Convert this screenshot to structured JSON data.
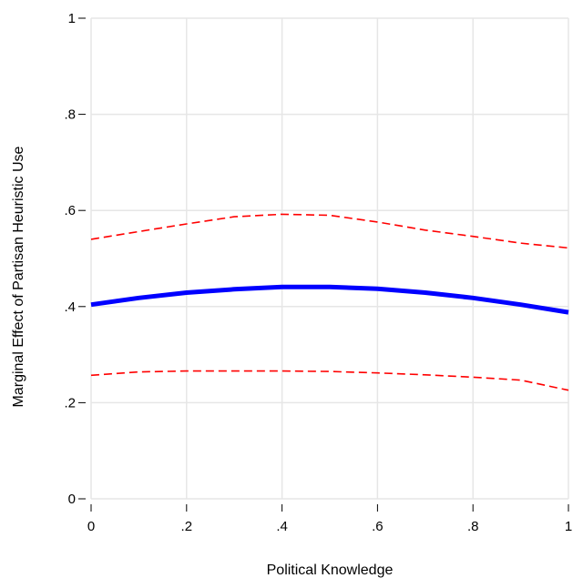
{
  "chart_data": {
    "type": "line",
    "title": "",
    "xlabel": "Political Knowledge",
    "ylabel": "Marginal Effect of Partisan Heuristic Use",
    "xlim": [
      0,
      1
    ],
    "ylim": [
      0,
      1
    ],
    "x_ticks": [
      0,
      0.2,
      0.4,
      0.6,
      0.8,
      1
    ],
    "x_tick_labels": [
      "0",
      ".2",
      ".4",
      ".6",
      ".8",
      "1"
    ],
    "y_ticks": [
      0,
      0.2,
      0.4,
      0.6,
      0.8,
      1
    ],
    "y_tick_labels": [
      "0",
      ".2",
      ".4",
      ".6",
      ".8",
      "1"
    ],
    "grid": true,
    "x": [
      0,
      0.1,
      0.2,
      0.3,
      0.4,
      0.5,
      0.6,
      0.7,
      0.8,
      0.9,
      1
    ],
    "series": [
      {
        "role": "estimate",
        "color": "#0000ff",
        "style": "solid",
        "values": [
          0.404,
          0.418,
          0.429,
          0.436,
          0.441,
          0.441,
          0.437,
          0.429,
          0.418,
          0.404,
          0.388
        ]
      },
      {
        "role": "upper-bound",
        "color": "#ff0000",
        "style": "dashed",
        "values": [
          0.54,
          0.556,
          0.572,
          0.587,
          0.592,
          0.59,
          0.576,
          0.559,
          0.546,
          0.532,
          0.522
        ]
      },
      {
        "role": "lower-bound",
        "color": "#ff0000",
        "style": "dashed",
        "values": [
          0.257,
          0.264,
          0.266,
          0.266,
          0.266,
          0.265,
          0.262,
          0.258,
          0.253,
          0.247,
          0.226
        ]
      }
    ]
  }
}
